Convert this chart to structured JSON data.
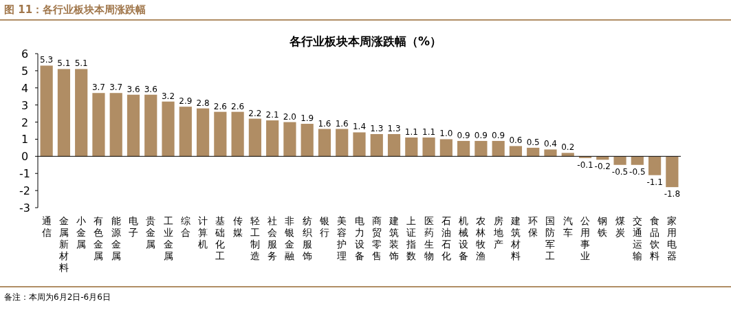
{
  "chart_data": {
    "type": "bar",
    "title": "图 11：各行业板块本周涨跌幅",
    "subtitle": "各行业板块本周涨跌幅（%）",
    "categories": [
      "通信",
      "金属新材料",
      "小金属",
      "有色金属",
      "能源金属",
      "电子",
      "贵金属",
      "工业金属",
      "综合",
      "计算机",
      "基础化工",
      "传媒",
      "轻工制造",
      "社会服务",
      "非银金融",
      "纺织服饰",
      "银行",
      "美容护理",
      "电力设备",
      "商贸零售",
      "建筑装饰",
      "上证指数",
      "医药生物",
      "石油石化",
      "机械设备",
      "农林牧渔",
      "房地产",
      "建筑材料",
      "环保",
      "国防军工",
      "汽车",
      "公用事业",
      "钢铁",
      "煤炭",
      "交通运输",
      "食品饮料",
      "家用电器"
    ],
    "values": [
      5.3,
      5.1,
      5.1,
      3.7,
      3.7,
      3.6,
      3.6,
      3.2,
      2.9,
      2.8,
      2.6,
      2.6,
      2.2,
      2.1,
      2.0,
      1.9,
      1.6,
      1.6,
      1.4,
      1.3,
      1.3,
      1.1,
      1.1,
      1.0,
      0.9,
      0.9,
      0.9,
      0.6,
      0.5,
      0.4,
      0.2,
      -0.1,
      -0.2,
      -0.5,
      -0.5,
      -1.1,
      -1.8
    ],
    "value_labels": [
      "5.3",
      "5.1",
      "5.1",
      "3.7",
      "3.7",
      "3.6",
      "3.6",
      "3.2",
      "2.9",
      "2.8",
      "2.6",
      "2.6",
      "2.2",
      "2.1",
      "2.0",
      "1.9",
      "1.6",
      "1.6",
      "1.4",
      "1.3",
      "1.3",
      "1.1",
      "1.1",
      "1.0",
      "0.9",
      "0.9",
      "0.9",
      "0.6",
      "0.5",
      "0.4",
      "0.2",
      "-0.1",
      "-0.2",
      "-0.5",
      "-0.5",
      "-1.1",
      "-1.8"
    ],
    "color": "#b08d64",
    "ylim": [
      -3,
      6
    ],
    "yticks": [
      -3,
      -2,
      -1,
      0,
      1,
      2,
      3,
      4,
      5,
      6
    ],
    "annotations": [
      "备注：本周为6月2日-6月6日"
    ]
  }
}
